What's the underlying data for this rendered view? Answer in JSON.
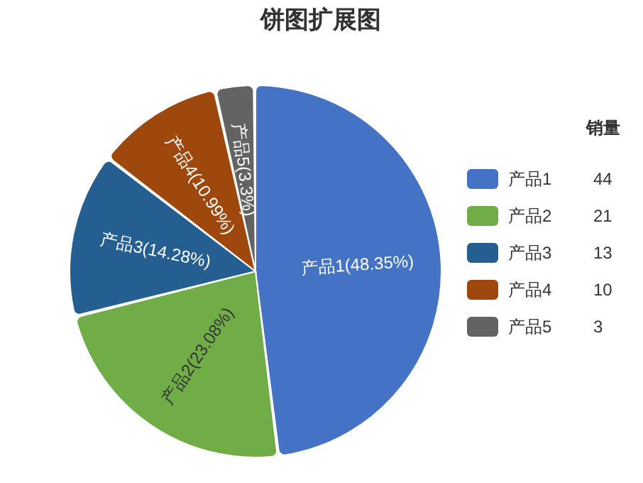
{
  "chart_data": {
    "type": "pie",
    "title": "饼图扩展图",
    "legend_title": "销量",
    "categories": [
      "产品1",
      "产品2",
      "产品3",
      "产品4",
      "产品5"
    ],
    "values": [
      44,
      21,
      13,
      10,
      3
    ],
    "colors": [
      "#4472c4",
      "#70ad47",
      "#255e91",
      "#9e480e",
      "#636363"
    ],
    "annotations": [
      "产品1(48.35%)",
      "产品2(23.08%)",
      "产品3(14.28%)",
      "产品4(10.99%)",
      "产品5(3.3%)"
    ],
    "data_labels": true,
    "legend": "right"
  }
}
